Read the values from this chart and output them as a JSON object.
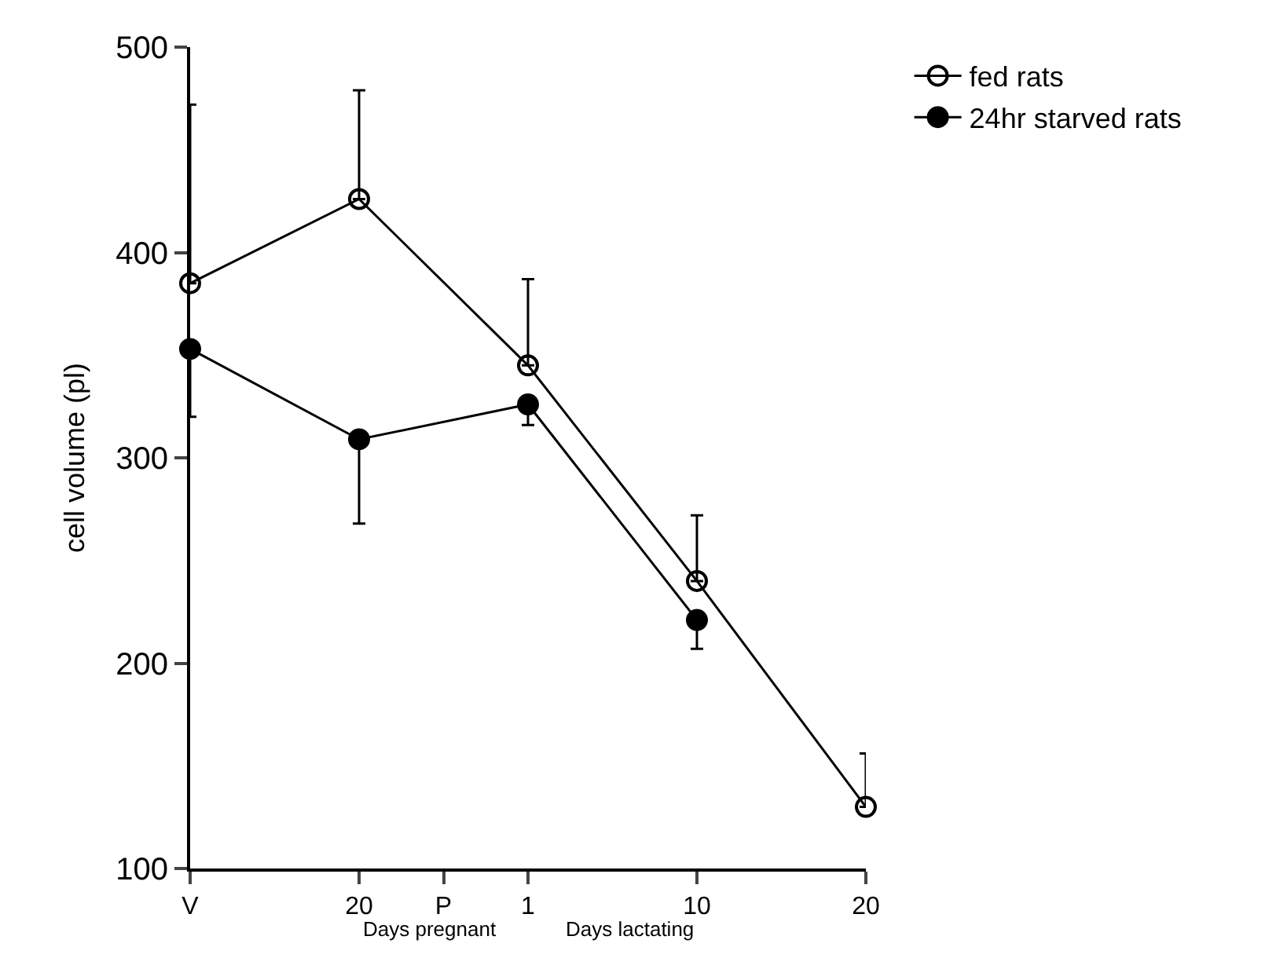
{
  "chart_data": {
    "type": "line",
    "ylabel": "cell volume (pl)",
    "categories": [
      "V",
      null,
      "20",
      "P",
      "1",
      null,
      "10",
      null,
      "20"
    ],
    "ylim": [
      100,
      500
    ],
    "yticks": [
      100,
      200,
      300,
      400,
      500
    ],
    "series": [
      {
        "name": "fed rats",
        "color": "#000000",
        "marker": "circle-open",
        "values": [
          385,
          null,
          426,
          null,
          345,
          null,
          240,
          null,
          130
        ],
        "errors": [
          [
            385,
            472
          ],
          null,
          [
            426,
            479
          ],
          null,
          [
            345,
            387
          ],
          null,
          [
            240,
            272
          ],
          null,
          [
            130,
            156
          ]
        ]
      },
      {
        "name": "24hr starved rats",
        "color": "#000000",
        "marker": "circle",
        "values": [
          353,
          null,
          309,
          null,
          326,
          null,
          221,
          null,
          null
        ],
        "errors": [
          [
            320,
            353
          ],
          null,
          [
            268,
            309
          ],
          null,
          [
            316,
            326
          ],
          null,
          [
            207,
            221
          ],
          null,
          null
        ]
      }
    ],
    "annotations": [
      "Days pregnant",
      "Days lactating"
    ],
    "legend": "top right",
    "line_style": "solid"
  }
}
